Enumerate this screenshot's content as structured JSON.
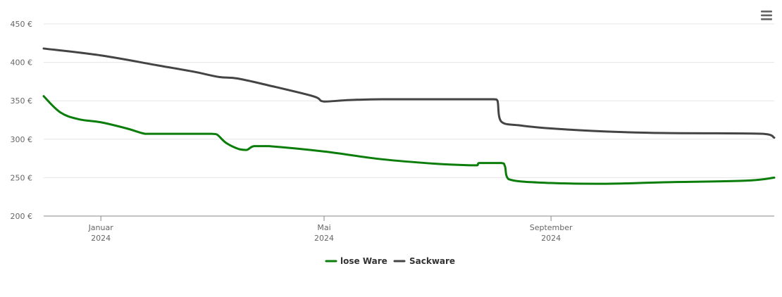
{
  "menu_icon": "hamburger-menu-icon",
  "colors": {
    "lose_ware": "#0a7d0a",
    "sackware": "#444444",
    "grid": "#e6e6e6",
    "axis": "#888888",
    "tick_text": "#666666"
  },
  "chart_data": {
    "type": "line",
    "title": "",
    "xlabel": "",
    "ylabel": "",
    "grid": true,
    "legend_position": "bottom-center",
    "ylim": [
      200,
      450
    ],
    "y_ticks": [
      200,
      250,
      300,
      350,
      400,
      450
    ],
    "y_tick_labels": [
      "200 €",
      "250 €",
      "300 €",
      "350 €",
      "400 €",
      "450 €"
    ],
    "xlim": [
      "2023-12-01",
      "2024-12-31"
    ],
    "x_ticks": [
      {
        "date": "2024-01-01",
        "month": "Januar",
        "year": "2024"
      },
      {
        "date": "2024-05-01",
        "month": "Mai",
        "year": "2024"
      },
      {
        "date": "2024-09-01",
        "month": "September",
        "year": "2024"
      }
    ],
    "series": [
      {
        "name": "lose Ware",
        "color": "#0a7d0a",
        "points": [
          [
            "2023-12-01",
            356
          ],
          [
            "2023-12-10",
            335
          ],
          [
            "2023-12-20",
            326
          ],
          [
            "2024-01-01",
            322
          ],
          [
            "2024-01-15",
            314
          ],
          [
            "2024-01-25",
            307
          ],
          [
            "2024-02-01",
            307
          ],
          [
            "2024-03-01",
            307
          ],
          [
            "2024-03-04",
            306
          ],
          [
            "2024-03-09",
            295
          ],
          [
            "2024-03-16",
            287
          ],
          [
            "2024-03-20",
            286
          ],
          [
            "2024-03-24",
            291
          ],
          [
            "2024-04-01",
            291
          ],
          [
            "2024-05-01",
            284
          ],
          [
            "2024-06-01",
            274
          ],
          [
            "2024-07-01",
            268
          ],
          [
            "2024-07-20",
            266
          ],
          [
            "2024-07-23",
            266
          ],
          [
            "2024-07-24",
            269
          ],
          [
            "2024-08-05",
            269
          ],
          [
            "2024-08-07",
            265
          ],
          [
            "2024-08-09",
            248
          ],
          [
            "2024-09-01",
            243
          ],
          [
            "2024-10-01",
            242
          ],
          [
            "2024-11-01",
            244
          ],
          [
            "2024-12-15",
            246
          ],
          [
            "2024-12-31",
            250
          ]
        ]
      },
      {
        "name": "Sackware",
        "color": "#444444",
        "points": [
          [
            "2023-12-01",
            418
          ],
          [
            "2024-01-01",
            409
          ],
          [
            "2024-02-01",
            396
          ],
          [
            "2024-02-20",
            388
          ],
          [
            "2024-03-05",
            381
          ],
          [
            "2024-03-15",
            379
          ],
          [
            "2024-04-01",
            370
          ],
          [
            "2024-04-25",
            356
          ],
          [
            "2024-05-01",
            349
          ],
          [
            "2024-05-15",
            351
          ],
          [
            "2024-06-01",
            352
          ],
          [
            "2024-07-01",
            352
          ],
          [
            "2024-08-01",
            352
          ],
          [
            "2024-08-03",
            350
          ],
          [
            "2024-08-05",
            323
          ],
          [
            "2024-08-15",
            318
          ],
          [
            "2024-09-01",
            314
          ],
          [
            "2024-10-01",
            310
          ],
          [
            "2024-11-01",
            308
          ],
          [
            "2024-12-25",
            307
          ],
          [
            "2024-12-31",
            302
          ]
        ]
      }
    ]
  }
}
